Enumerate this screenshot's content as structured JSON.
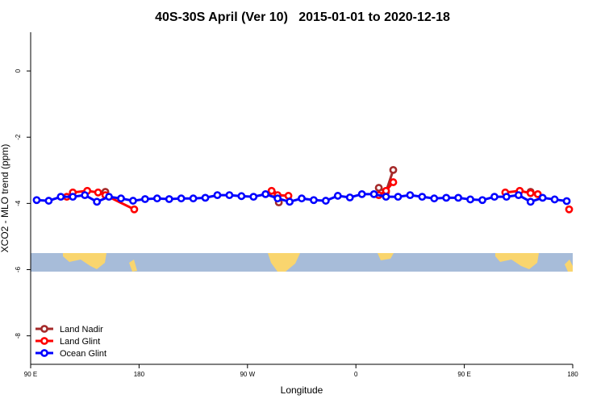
{
  "chart_data": {
    "type": "line",
    "title": "40S-30S April (Ver 10)   2015-01-01 to 2020-12-18",
    "x_label": "Longitude",
    "y_label": "XCO2 - MLO trend (ppm)",
    "xlim": [
      90,
      540
    ],
    "ylim": [
      -8.86,
      1.17
    ],
    "xticks": [
      {
        "value": 90,
        "label": "90 E"
      },
      180,
      {
        "value": 270,
        "label": "90 W"
      },
      {
        "value": 360,
        "label": "0"
      },
      {
        "value": 450,
        "label": "90 E"
      },
      {
        "value": 540,
        "label": "180"
      }
    ],
    "yticks": [
      0,
      -2,
      -4,
      -6,
      -8
    ],
    "legend": "bottom-left",
    "series": [
      {
        "name": "Land Nadir",
        "color": "#a52a2a",
        "x": [
          152,
          200,
          291,
          296,
          340,
          379,
          385,
          391,
          450,
          505
        ],
        "values": [
          -3.65,
          null,
          -3.7,
          -3.97,
          null,
          -3.53,
          -3.65,
          -2.99,
          null,
          -3.65
        ]
      },
      {
        "name": "Land Glint",
        "color": "#ff0000",
        "x": [
          120,
          125,
          137,
          146,
          152,
          176,
          230,
          290,
          295,
          304,
          340,
          379,
          385,
          391,
          450,
          484,
          496,
          505,
          511,
          525,
          537
        ],
        "values": [
          -3.8,
          -3.67,
          -3.62,
          -3.67,
          -3.75,
          -4.18,
          null,
          -3.62,
          -3.75,
          -3.77,
          null,
          -3.75,
          -3.62,
          -3.36,
          null,
          -3.67,
          -3.62,
          -3.69,
          -3.72,
          null,
          -4.18
        ]
      },
      {
        "name": "Ocean Glint",
        "color": "#0000ff",
        "x": [
          95,
          105,
          115,
          125,
          135,
          145,
          155,
          165,
          175,
          185,
          195,
          205,
          215,
          225,
          235,
          245,
          255,
          265,
          275,
          285,
          295,
          305,
          315,
          325,
          335,
          345,
          355,
          365,
          375,
          385,
          395,
          405,
          415,
          425,
          435,
          445,
          455,
          465,
          475,
          485,
          495,
          505,
          515,
          525,
          535
        ],
        "values": [
          -3.9,
          -3.92,
          -3.8,
          -3.8,
          -3.75,
          -3.95,
          -3.8,
          -3.85,
          -3.92,
          -3.87,
          -3.85,
          -3.87,
          -3.85,
          -3.85,
          -3.83,
          -3.75,
          -3.75,
          -3.78,
          -3.8,
          -3.72,
          -3.85,
          -3.95,
          -3.85,
          -3.9,
          -3.92,
          -3.77,
          -3.82,
          -3.72,
          -3.72,
          -3.8,
          -3.8,
          -3.75,
          -3.8,
          -3.85,
          -3.83,
          -3.83,
          -3.88,
          -3.9,
          -3.8,
          -3.8,
          -3.75,
          -3.95,
          -3.83,
          -3.88,
          -3.93
        ]
      }
    ]
  }
}
